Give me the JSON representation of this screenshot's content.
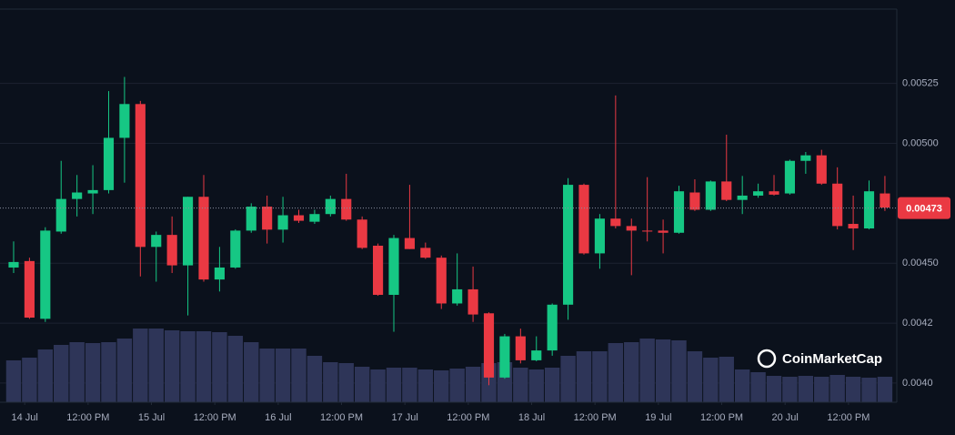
{
  "chart_data": {
    "type": "candlestick",
    "up_color": "#16c784",
    "down_color": "#ea3943",
    "volume_color": "#2e3558",
    "grid": true,
    "ylim": [
      0.00392,
      0.00556
    ],
    "yticks": [
      {
        "value": 0.004,
        "label": "0.0040"
      },
      {
        "value": 0.00425,
        "label": "0.0042"
      },
      {
        "value": 0.0045,
        "label": "0.00450"
      },
      {
        "value": 0.005,
        "label": "0.00500"
      },
      {
        "value": 0.00525,
        "label": "0.00525"
      }
    ],
    "xlim": [
      -0.86,
      55.75
    ],
    "xticks": [
      {
        "value": 0.7,
        "label": "14 Jul"
      },
      {
        "value": 4.7,
        "label": "12:00 PM"
      },
      {
        "value": 8.7,
        "label": "15 Jul"
      },
      {
        "value": 12.7,
        "label": "12:00 PM"
      },
      {
        "value": 16.7,
        "label": "16 Jul"
      },
      {
        "value": 20.7,
        "label": "12:00 PM"
      },
      {
        "value": 24.7,
        "label": "17 Jul"
      },
      {
        "value": 28.7,
        "label": "12:00 PM"
      },
      {
        "value": 32.7,
        "label": "18 Jul"
      },
      {
        "value": 36.7,
        "label": "12:00 PM"
      },
      {
        "value": 40.7,
        "label": "19 Jul"
      },
      {
        "value": 44.7,
        "label": "12:00 PM"
      },
      {
        "value": 48.7,
        "label": "20 Jul"
      },
      {
        "value": 52.7,
        "label": "12:00 PM"
      }
    ],
    "last_price": {
      "value": 0.00473,
      "label": "0.00473"
    },
    "watermark": "CoinMarketCap",
    "open": [
      0.004482,
      0.004509,
      0.004268,
      0.004632,
      0.004768,
      0.004791,
      0.004805,
      0.005023,
      0.005164,
      0.004568,
      0.004618,
      0.004491,
      0.004777,
      0.004432,
      0.004482,
      0.004636,
      0.004736,
      0.00464,
      0.0047,
      0.004673,
      0.004705,
      0.004768,
      0.004682,
      0.004573,
      0.004368,
      0.004605,
      0.004564,
      0.004523,
      0.004332,
      0.004391,
      0.004291,
      0.004023,
      0.004195,
      0.004095,
      0.004136,
      0.004327,
      0.004827,
      0.004541,
      0.004686,
      0.004655,
      0.004636,
      0.004636,
      0.004627,
      0.004795,
      0.004723,
      0.004841,
      0.004764,
      0.004782,
      0.0048,
      0.004791,
      0.004927,
      0.00495,
      0.004832,
      0.004664,
      0.004645,
      0.004791
    ],
    "high": [
      0.004591,
      0.004523,
      0.00465,
      0.004927,
      0.004868,
      0.004909,
      0.005218,
      0.005277,
      0.005177,
      0.004632,
      0.004695,
      0.004777,
      0.004868,
      0.004568,
      0.004641,
      0.00475,
      0.004782,
      0.004777,
      0.004723,
      0.004723,
      0.004782,
      0.004873,
      0.004695,
      0.004582,
      0.004618,
      0.004827,
      0.004586,
      0.004532,
      0.004541,
      0.004486,
      0.004295,
      0.004205,
      0.004227,
      0.004195,
      0.004332,
      0.004855,
      0.004832,
      0.004705,
      0.0052,
      0.004686,
      0.004859,
      0.004682,
      0.004823,
      0.00485,
      0.004845,
      0.005036,
      0.004864,
      0.004832,
      0.004868,
      0.004932,
      0.004964,
      0.004973,
      0.0049,
      0.004782,
      0.004845,
      0.004864
    ],
    "low": [
      0.004459,
      0.004268,
      0.004255,
      0.004623,
      0.004695,
      0.004705,
      0.004791,
      0.004836,
      0.004445,
      0.004423,
      0.004459,
      0.004282,
      0.004423,
      0.004382,
      0.004477,
      0.004627,
      0.004582,
      0.004586,
      0.004668,
      0.004664,
      0.004695,
      0.004677,
      0.004559,
      0.004364,
      0.004214,
      0.004559,
      0.004518,
      0.004309,
      0.004323,
      0.004255,
      0.003991,
      0.004018,
      0.004082,
      0.004091,
      0.004114,
      0.004264,
      0.004536,
      0.004477,
      0.004645,
      0.00445,
      0.004591,
      0.004541,
      0.004623,
      0.004718,
      0.004718,
      0.004759,
      0.004705,
      0.004773,
      0.004782,
      0.004786,
      0.004873,
      0.004827,
      0.004641,
      0.004555,
      0.004641,
      0.004718
    ],
    "close": [
      0.004505,
      0.004273,
      0.004636,
      0.004768,
      0.004795,
      0.004805,
      0.005023,
      0.005164,
      0.004568,
      0.004618,
      0.004491,
      0.004777,
      0.004432,
      0.004482,
      0.004636,
      0.004736,
      0.00464,
      0.0047,
      0.004677,
      0.004705,
      0.004768,
      0.004682,
      0.004564,
      0.004368,
      0.004605,
      0.004559,
      0.004523,
      0.004332,
      0.004391,
      0.004286,
      0.004023,
      0.004195,
      0.004095,
      0.004136,
      0.004327,
      0.004827,
      0.004541,
      0.004686,
      0.004655,
      0.004636,
      0.004632,
      0.004627,
      0.0048,
      0.004723,
      0.004841,
      0.004764,
      0.004782,
      0.0048,
      0.004786,
      0.004927,
      0.00495,
      0.004832,
      0.004655,
      0.004645,
      0.0048,
      0.004732
    ],
    "volume_lim": [
      0,
      100
    ],
    "volume": [
      46,
      49,
      58,
      63,
      66,
      65,
      66,
      70,
      81,
      81,
      79,
      78,
      78,
      77,
      73,
      66,
      59,
      59,
      59,
      51,
      44,
      43,
      39,
      36,
      38,
      38,
      36,
      35,
      37,
      39,
      43,
      44,
      38,
      36,
      38,
      51,
      56,
      56,
      65,
      66,
      70,
      69,
      68,
      56,
      49,
      50,
      36,
      33,
      29,
      28,
      29,
      28,
      30,
      28,
      27,
      28
    ]
  }
}
